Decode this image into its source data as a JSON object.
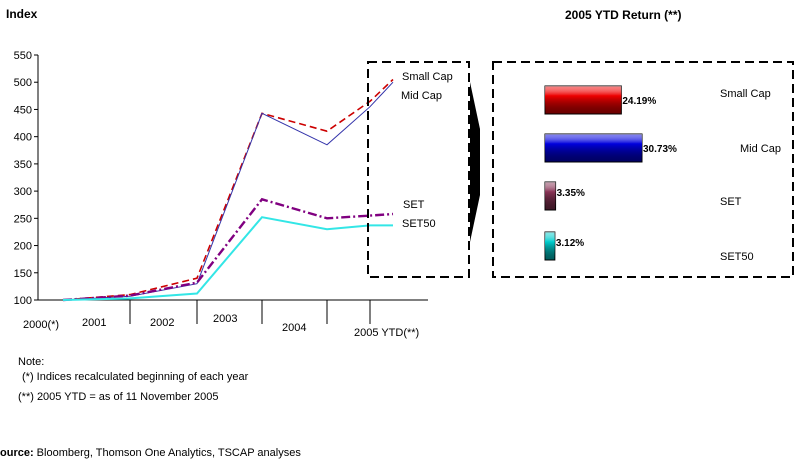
{
  "left_chart": {
    "y_axis_title": "Index",
    "chart_data": {
      "type": "line",
      "ylim": [
        100,
        550
      ],
      "yticks": [
        100,
        150,
        200,
        250,
        300,
        350,
        400,
        450,
        500,
        550
      ],
      "x_labels": [
        "2000(*)",
        "2001",
        "2002",
        "2003",
        "2004",
        "2005 YTD(**)"
      ],
      "x_points": [
        2000,
        2001,
        2002,
        2003,
        2004,
        2005,
        2005.5
      ],
      "series": [
        {
          "name": "Small Cap",
          "color": "#cc0000",
          "values": [
            100,
            110,
            140,
            443,
            410,
            465,
            505
          ]
        },
        {
          "name": "Mid Cap",
          "color": "#3333aa",
          "values": [
            100,
            107,
            130,
            443,
            385,
            455,
            500
          ]
        },
        {
          "name": "SET",
          "color": "#800080",
          "values": [
            100,
            108,
            132,
            285,
            250,
            255,
            258
          ]
        },
        {
          "name": "SET50",
          "color": "#33e6e6",
          "values": [
            100,
            103,
            112,
            252,
            230,
            237,
            237
          ]
        }
      ],
      "grid": false
    }
  },
  "right_chart": {
    "title": "2005 YTD Return (**)",
    "chart_data": {
      "type": "bar",
      "orientation": "horizontal",
      "categories": [
        "Small Cap",
        "Mid Cap",
        "SET",
        "SET50"
      ],
      "values": [
        24.19,
        30.73,
        3.35,
        3.12
      ],
      "value_labels": [
        "24.19%",
        "30.73%",
        "3.35%",
        "3.12%"
      ],
      "colors": [
        "#ee0000",
        "#0000dd",
        "#883355",
        "#00cccc"
      ]
    }
  },
  "notes": {
    "heading": "Note:",
    "line1": "(*) Indices recalculated beginning of each year",
    "line2": "(**) 2005 YTD = as of 11 November 2005"
  },
  "source": {
    "label": "ource:",
    "text": " Bloomberg, Thomson One Analytics, TSCAP analyses"
  }
}
